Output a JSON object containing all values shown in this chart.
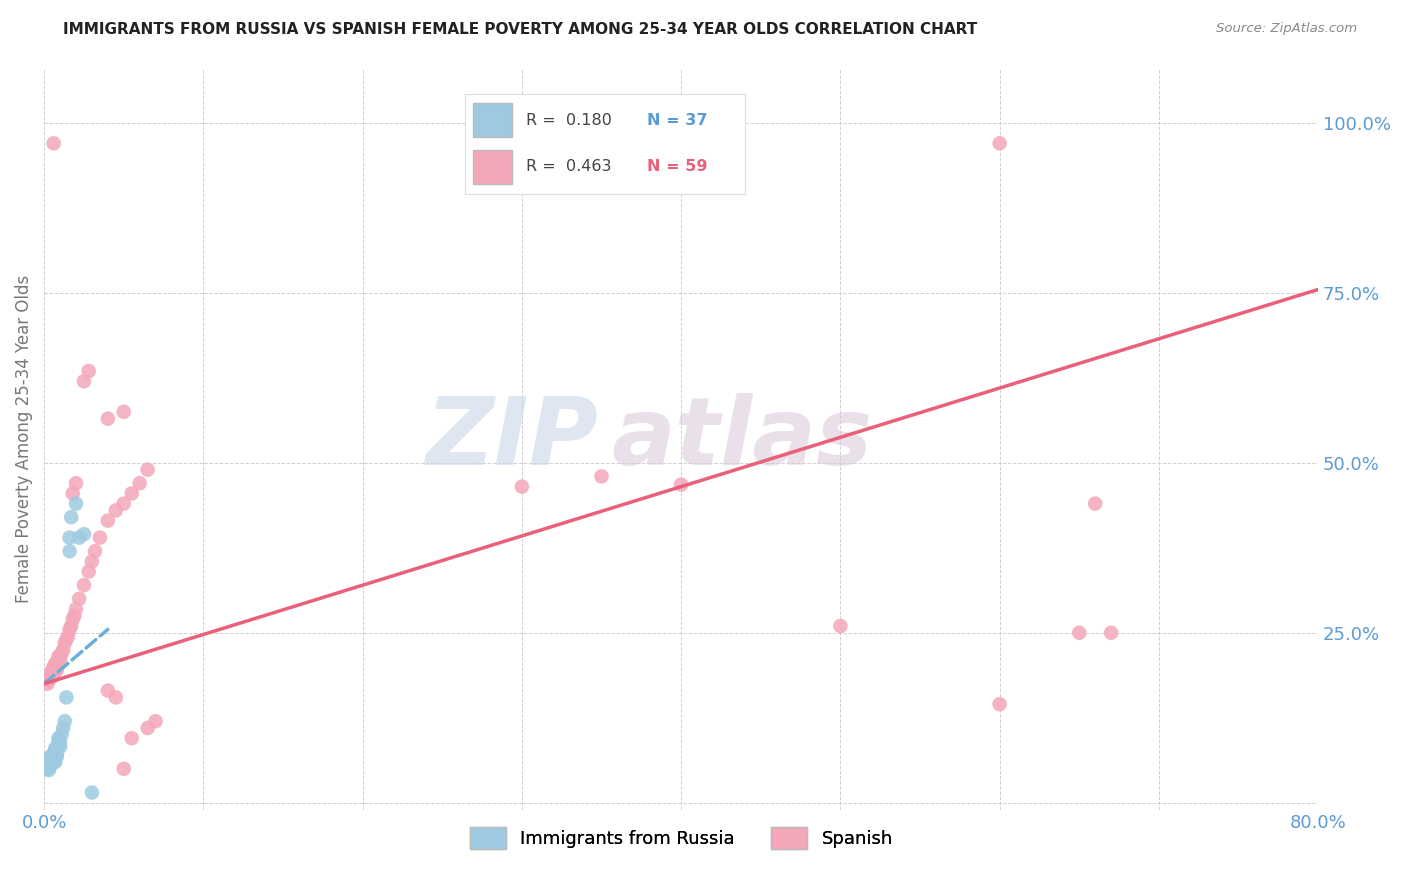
{
  "title": "IMMIGRANTS FROM RUSSIA VS SPANISH FEMALE POVERTY AMONG 25-34 YEAR OLDS CORRELATION CHART",
  "source": "Source: ZipAtlas.com",
  "ylabel": "Female Poverty Among 25-34 Year Olds",
  "xlim": [
    0.0,
    0.8
  ],
  "ylim": [
    -0.01,
    1.08
  ],
  "xticks": [
    0.0,
    0.1,
    0.2,
    0.3,
    0.4,
    0.5,
    0.6,
    0.7,
    0.8
  ],
  "xticklabels": [
    "0.0%",
    "",
    "",
    "",
    "",
    "",
    "",
    "",
    "80.0%"
  ],
  "ytick_vals": [
    0.0,
    0.25,
    0.5,
    0.75,
    1.0
  ],
  "yticklabels": [
    "",
    "25.0%",
    "50.0%",
    "75.0%",
    "100.0%"
  ],
  "watermark_zip": "ZIP",
  "watermark_atlas": "atlas",
  "russia_color": "#9ecae1",
  "spanish_color": "#f4a7b9",
  "russia_line_color": "#6baed6",
  "spanish_line_color": "#e8607a",
  "russia_scatter_x": [
    0.002,
    0.002,
    0.003,
    0.003,
    0.003,
    0.003,
    0.004,
    0.004,
    0.004,
    0.005,
    0.005,
    0.005,
    0.006,
    0.006,
    0.006,
    0.007,
    0.007,
    0.007,
    0.007,
    0.008,
    0.008,
    0.008,
    0.009,
    0.009,
    0.01,
    0.01,
    0.011,
    0.012,
    0.013,
    0.014,
    0.016,
    0.016,
    0.017,
    0.02,
    0.022,
    0.025,
    0.03
  ],
  "russia_scatter_y": [
    0.05,
    0.055,
    0.048,
    0.052,
    0.06,
    0.065,
    0.055,
    0.06,
    0.068,
    0.058,
    0.065,
    0.07,
    0.06,
    0.062,
    0.072,
    0.06,
    0.065,
    0.078,
    0.08,
    0.068,
    0.072,
    0.078,
    0.09,
    0.095,
    0.082,
    0.088,
    0.1,
    0.11,
    0.12,
    0.155,
    0.37,
    0.39,
    0.42,
    0.44,
    0.39,
    0.395,
    0.015
  ],
  "spanish_scatter_x": [
    0.002,
    0.003,
    0.004,
    0.004,
    0.005,
    0.005,
    0.006,
    0.006,
    0.007,
    0.007,
    0.008,
    0.008,
    0.009,
    0.01,
    0.01,
    0.011,
    0.012,
    0.013,
    0.014,
    0.015,
    0.016,
    0.017,
    0.018,
    0.019,
    0.02,
    0.022,
    0.025,
    0.028,
    0.03,
    0.032,
    0.035,
    0.04,
    0.045,
    0.05,
    0.055,
    0.06,
    0.065,
    0.018,
    0.02,
    0.025,
    0.028,
    0.04,
    0.05,
    0.006,
    0.6,
    0.04,
    0.045,
    0.05,
    0.055,
    0.065,
    0.07,
    0.3,
    0.35,
    0.4,
    0.5,
    0.6,
    0.65,
    0.66,
    0.67
  ],
  "spanish_scatter_y": [
    0.175,
    0.18,
    0.185,
    0.19,
    0.185,
    0.195,
    0.19,
    0.2,
    0.195,
    0.205,
    0.195,
    0.205,
    0.215,
    0.21,
    0.215,
    0.22,
    0.225,
    0.235,
    0.24,
    0.245,
    0.255,
    0.26,
    0.27,
    0.275,
    0.285,
    0.3,
    0.32,
    0.34,
    0.355,
    0.37,
    0.39,
    0.415,
    0.43,
    0.44,
    0.455,
    0.47,
    0.49,
    0.455,
    0.47,
    0.62,
    0.635,
    0.565,
    0.575,
    0.97,
    0.97,
    0.165,
    0.155,
    0.05,
    0.095,
    0.11,
    0.12,
    0.465,
    0.48,
    0.468,
    0.26,
    0.145,
    0.25,
    0.44,
    0.25
  ],
  "russia_trend_x": [
    0.0,
    0.04
  ],
  "russia_trend_y": [
    0.175,
    0.255
  ],
  "spanish_trend_x": [
    0.0,
    0.8
  ],
  "spanish_trend_y": [
    0.175,
    0.755
  ]
}
